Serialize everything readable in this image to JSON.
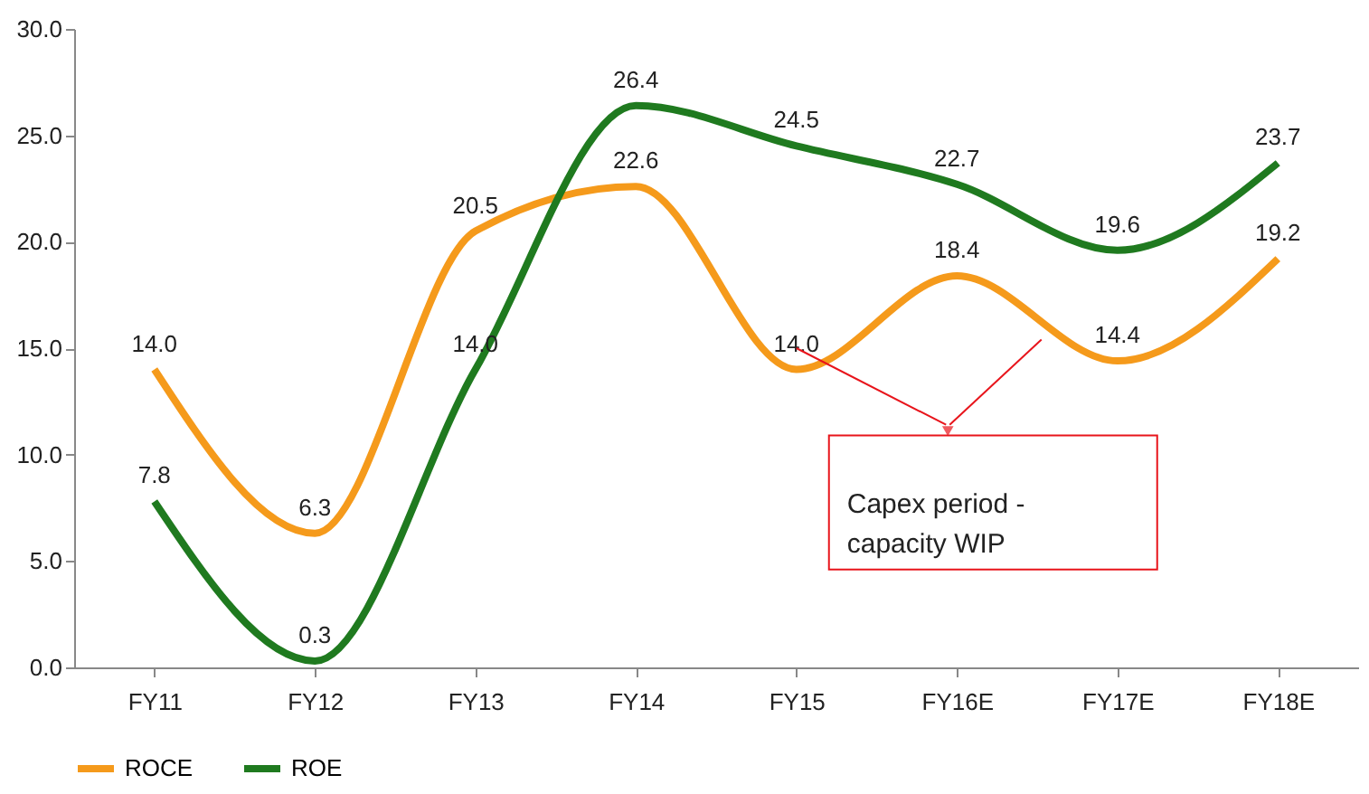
{
  "chart_data": {
    "type": "line",
    "categories": [
      "FY11",
      "FY12",
      "FY13",
      "FY14",
      "FY15",
      "FY16E",
      "FY17E",
      "FY18E"
    ],
    "series": [
      {
        "name": "ROCE",
        "color": "#f59a1b",
        "values": [
          14.0,
          6.3,
          20.5,
          22.6,
          14.0,
          18.4,
          14.4,
          19.2
        ],
        "value_labels": [
          "14.0",
          "6.3",
          "20.5",
          "22.6",
          "14.0",
          "18.4",
          "14.4",
          "19.2"
        ]
      },
      {
        "name": "ROE",
        "color": "#1f7a1f",
        "values": [
          7.8,
          0.3,
          14.0,
          26.4,
          24.5,
          22.7,
          19.6,
          23.7
        ],
        "value_labels": [
          "7.8",
          "0.3",
          "14.0",
          "26.4",
          "24.5",
          "22.7",
          "19.6",
          "23.7"
        ]
      }
    ],
    "ylim": [
      0,
      30
    ],
    "yticks": [
      {
        "value": 0,
        "label": "0.0"
      },
      {
        "value": 5,
        "label": "5.0"
      },
      {
        "value": 10,
        "label": "10.0"
      },
      {
        "value": 15,
        "label": "15.0"
      },
      {
        "value": 20,
        "label": "20.0"
      },
      {
        "value": 25,
        "label": "25.0"
      },
      {
        "value": 30,
        "label": "30.0"
      }
    ],
    "legend": "bottom",
    "grid": false,
    "marker": "none",
    "annotations": [
      "Capex period - capacity WIP"
    ]
  }
}
